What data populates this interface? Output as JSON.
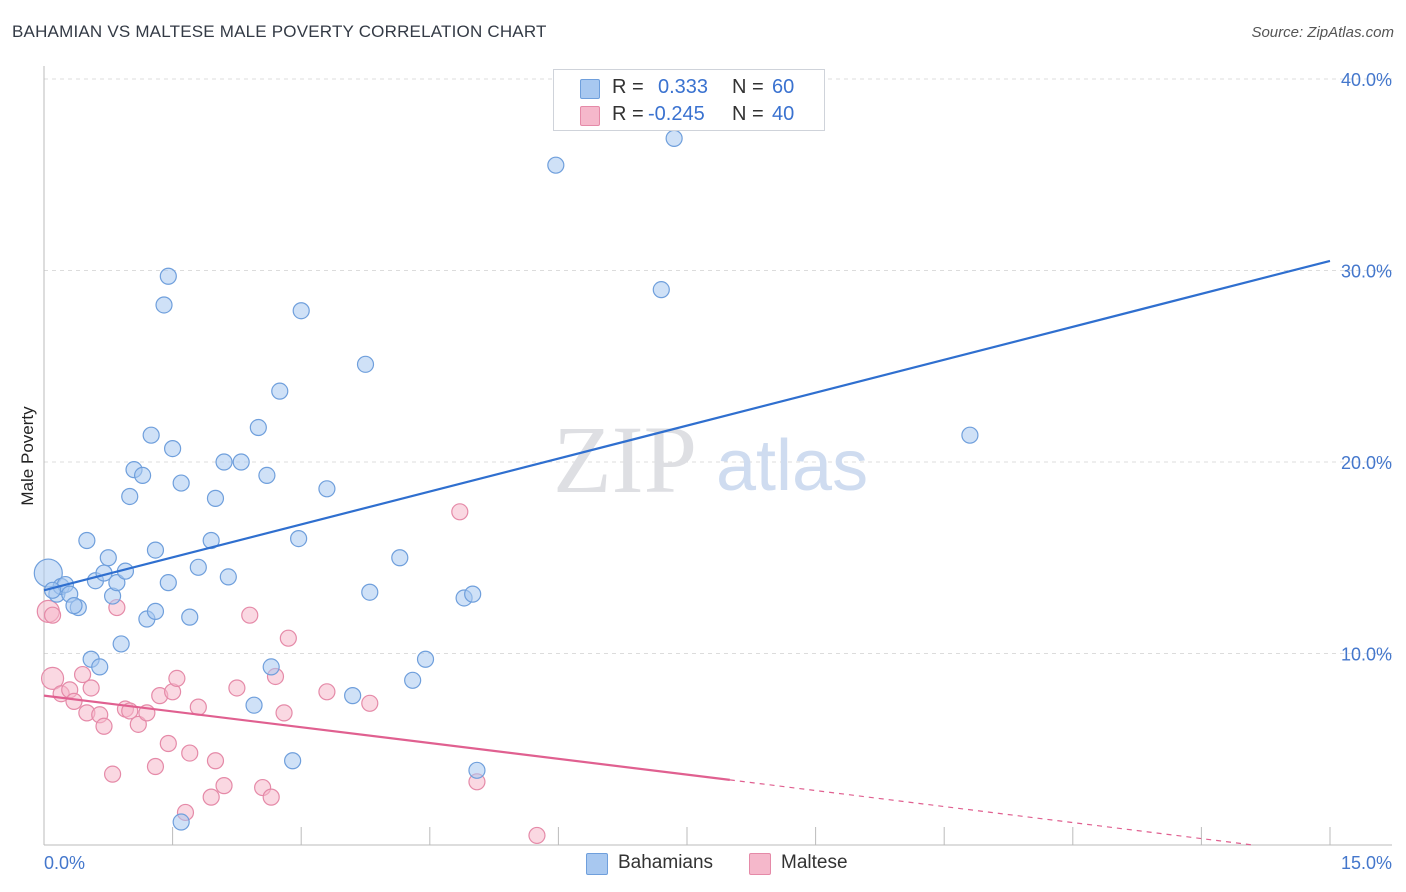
{
  "header": {
    "title": "BAHAMIAN VS MALTESE MALE POVERTY CORRELATION CHART",
    "source": "Source: ZipAtlas.com"
  },
  "watermark": {
    "zip": "ZIP",
    "atlas": "atlas"
  },
  "legend": {
    "rows": [
      {
        "name": "Bahamians",
        "r_label": "R =",
        "r_value": "0.333",
        "n_label": "N =",
        "n_value": "60",
        "color": "#a8c8f0"
      },
      {
        "name": "Maltese",
        "r_label": "R =",
        "r_value": "-0.245",
        "n_label": "N =",
        "n_value": "40",
        "color": "#f5b8cb"
      }
    ]
  },
  "colors": {
    "bahamians_fill": "#a8c8f0",
    "bahamians_stroke": "#6f9fdc",
    "bahamians_line": "#2f6fcf",
    "maltese_fill": "#f5b8cb",
    "maltese_stroke": "#e58aa8",
    "maltese_line": "#e06090",
    "grid": "#dcdcdc",
    "tick_text": "#4477cc"
  },
  "chart_data": {
    "type": "scatter",
    "title": "BAHAMIAN VS MALTESE MALE POVERTY CORRELATION CHART",
    "xlabel": "",
    "ylabel": "Male Poverty",
    "xlim": [
      0,
      15
    ],
    "ylim": [
      0,
      40
    ],
    "x_tick_labels": [
      "0.0%",
      "15.0%"
    ],
    "y_ticks": [
      10,
      20,
      30,
      40
    ],
    "y_tick_labels": [
      "10.0%",
      "20.0%",
      "30.0%",
      "40.0%"
    ],
    "grid": true,
    "legend_position": "top-center",
    "series": [
      {
        "name": "Bahamians",
        "r": 0.333,
        "n": 60,
        "trend": {
          "x": [
            0,
            15
          ],
          "y": [
            13.3,
            30.5
          ]
        },
        "points": [
          {
            "x": 0.05,
            "y": 14.2
          },
          {
            "x": 0.15,
            "y": 13.1
          },
          {
            "x": 0.2,
            "y": 13.5
          },
          {
            "x": 0.25,
            "y": 13.6
          },
          {
            "x": 0.3,
            "y": 13.1
          },
          {
            "x": 0.4,
            "y": 12.4
          },
          {
            "x": 0.35,
            "y": 12.5
          },
          {
            "x": 0.5,
            "y": 15.9
          },
          {
            "x": 0.6,
            "y": 13.8
          },
          {
            "x": 0.7,
            "y": 14.2
          },
          {
            "x": 0.75,
            "y": 15.0
          },
          {
            "x": 0.8,
            "y": 13.0
          },
          {
            "x": 0.85,
            "y": 13.7
          },
          {
            "x": 0.95,
            "y": 14.3
          },
          {
            "x": 0.9,
            "y": 10.5
          },
          {
            "x": 0.55,
            "y": 9.7
          },
          {
            "x": 0.65,
            "y": 9.3
          },
          {
            "x": 1.0,
            "y": 18.2
          },
          {
            "x": 1.05,
            "y": 19.6
          },
          {
            "x": 1.15,
            "y": 19.3
          },
          {
            "x": 1.25,
            "y": 21.4
          },
          {
            "x": 1.3,
            "y": 15.4
          },
          {
            "x": 1.45,
            "y": 13.7
          },
          {
            "x": 1.5,
            "y": 20.7
          },
          {
            "x": 1.6,
            "y": 18.9
          },
          {
            "x": 1.2,
            "y": 11.8
          },
          {
            "x": 1.3,
            "y": 12.2
          },
          {
            "x": 1.7,
            "y": 11.9
          },
          {
            "x": 1.8,
            "y": 14.5
          },
          {
            "x": 1.95,
            "y": 15.9
          },
          {
            "x": 2.0,
            "y": 18.1
          },
          {
            "x": 2.1,
            "y": 20.0
          },
          {
            "x": 2.15,
            "y": 14.0
          },
          {
            "x": 2.3,
            "y": 20.0
          },
          {
            "x": 2.45,
            "y": 7.3
          },
          {
            "x": 2.5,
            "y": 21.8
          },
          {
            "x": 2.6,
            "y": 19.3
          },
          {
            "x": 2.65,
            "y": 9.3
          },
          {
            "x": 2.75,
            "y": 23.7
          },
          {
            "x": 2.9,
            "y": 4.4
          },
          {
            "x": 2.97,
            "y": 16.0
          },
          {
            "x": 3.0,
            "y": 27.9
          },
          {
            "x": 3.3,
            "y": 18.6
          },
          {
            "x": 3.6,
            "y": 7.8
          },
          {
            "x": 3.75,
            "y": 25.1
          },
          {
            "x": 3.8,
            "y": 13.2
          },
          {
            "x": 4.15,
            "y": 15.0
          },
          {
            "x": 4.3,
            "y": 8.6
          },
          {
            "x": 4.45,
            "y": 9.7
          },
          {
            "x": 4.9,
            "y": 12.9
          },
          {
            "x": 5.0,
            "y": 13.1
          },
          {
            "x": 5.05,
            "y": 3.9
          },
          {
            "x": 1.4,
            "y": 28.2
          },
          {
            "x": 1.45,
            "y": 29.7
          },
          {
            "x": 5.97,
            "y": 35.5
          },
          {
            "x": 7.2,
            "y": 29.0
          },
          {
            "x": 7.35,
            "y": 36.9
          },
          {
            "x": 10.8,
            "y": 21.4
          },
          {
            "x": 1.6,
            "y": 1.2
          },
          {
            "x": 0.1,
            "y": 13.3
          }
        ]
      },
      {
        "name": "Maltese",
        "r": -0.245,
        "n": 40,
        "trend": {
          "x": [
            0,
            8
          ],
          "y": [
            7.8,
            3.4
          ]
        },
        "trend_dashed": {
          "x": [
            8,
            15
          ],
          "y": [
            3.4,
            -0.5
          ]
        },
        "points": [
          {
            "x": 0.05,
            "y": 12.2
          },
          {
            "x": 0.1,
            "y": 12.0
          },
          {
            "x": 0.1,
            "y": 8.7
          },
          {
            "x": 0.2,
            "y": 7.9
          },
          {
            "x": 0.3,
            "y": 8.1
          },
          {
            "x": 0.35,
            "y": 7.5
          },
          {
            "x": 0.45,
            "y": 8.9
          },
          {
            "x": 0.5,
            "y": 6.9
          },
          {
            "x": 0.55,
            "y": 8.2
          },
          {
            "x": 0.65,
            "y": 6.8
          },
          {
            "x": 0.7,
            "y": 6.2
          },
          {
            "x": 0.8,
            "y": 3.7
          },
          {
            "x": 0.85,
            "y": 12.4
          },
          {
            "x": 0.95,
            "y": 7.1
          },
          {
            "x": 1.0,
            "y": 7.0
          },
          {
            "x": 1.1,
            "y": 6.3
          },
          {
            "x": 1.2,
            "y": 6.9
          },
          {
            "x": 1.3,
            "y": 4.1
          },
          {
            "x": 1.35,
            "y": 7.8
          },
          {
            "x": 1.45,
            "y": 5.3
          },
          {
            "x": 1.5,
            "y": 8.0
          },
          {
            "x": 1.55,
            "y": 8.7
          },
          {
            "x": 1.65,
            "y": 1.7
          },
          {
            "x": 1.7,
            "y": 4.8
          },
          {
            "x": 1.8,
            "y": 7.2
          },
          {
            "x": 1.95,
            "y": 2.5
          },
          {
            "x": 2.0,
            "y": 4.4
          },
          {
            "x": 2.1,
            "y": 3.1
          },
          {
            "x": 2.25,
            "y": 8.2
          },
          {
            "x": 2.4,
            "y": 12.0
          },
          {
            "x": 2.55,
            "y": 3.0
          },
          {
            "x": 2.65,
            "y": 2.5
          },
          {
            "x": 2.7,
            "y": 8.8
          },
          {
            "x": 2.8,
            "y": 6.9
          },
          {
            "x": 2.85,
            "y": 10.8
          },
          {
            "x": 3.3,
            "y": 8.0
          },
          {
            "x": 3.8,
            "y": 7.4
          },
          {
            "x": 4.85,
            "y": 17.4
          },
          {
            "x": 5.05,
            "y": 3.3
          },
          {
            "x": 5.75,
            "y": 0.5
          }
        ]
      }
    ]
  }
}
